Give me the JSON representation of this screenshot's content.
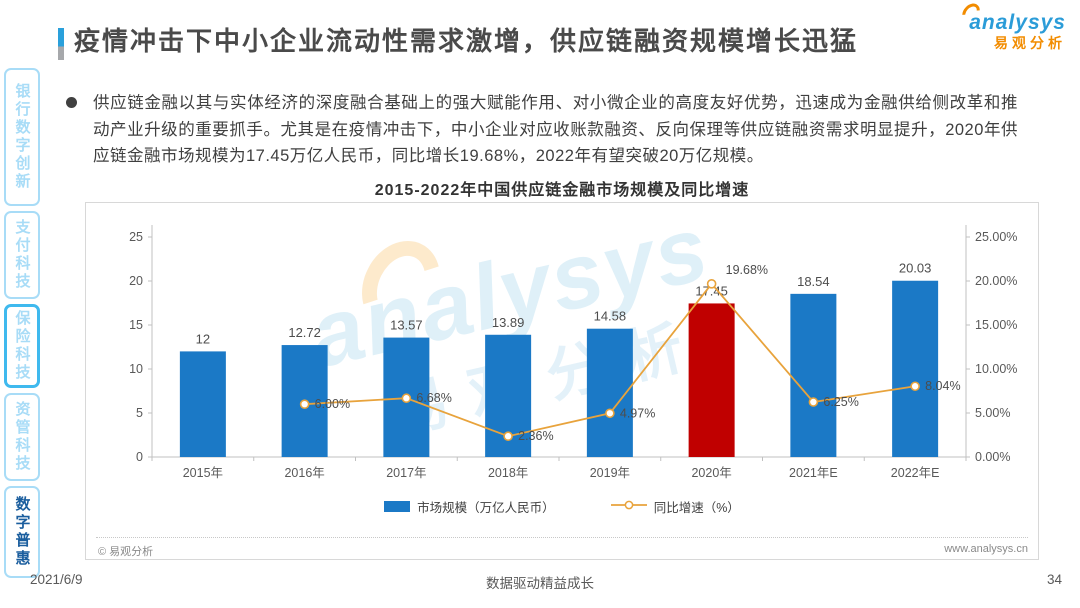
{
  "page": {
    "title": "疫情冲击下中小企业流动性需求激增，供应链融资规模增长迅猛",
    "footer": {
      "date": "2021/6/9",
      "slogan": "数据驱动精益成长",
      "page_number": "34"
    }
  },
  "logo": {
    "brand": "analysys",
    "brand_cn": "易观分析"
  },
  "sidebar": {
    "items": [
      {
        "label": "银行数字创新",
        "highlighted": false,
        "active": false
      },
      {
        "label": "支付科技",
        "highlighted": false,
        "active": false
      },
      {
        "label": "保险科技",
        "highlighted": true,
        "active": false
      },
      {
        "label": "资管科技",
        "highlighted": false,
        "active": false
      },
      {
        "label": "数字普惠",
        "highlighted": false,
        "active": true
      }
    ]
  },
  "body": {
    "bullet_text": "供应链金融以其与实体经济的深度融合基础上的强大赋能作用、对小微企业的高度友好优势，迅速成为金融供给侧改革和推动产业升级的重要抓手。尤其是在疫情冲击下，中小企业对应收账款融资、反向保理等供应链融资需求明显提升，2020年供应链金融市场规模为17.45万亿人民币，同比增长19.68%，2022年有望突破20万亿规模。"
  },
  "chart": {
    "source": "© 易观分析",
    "website": "www.analysys.cn",
    "watermark": {
      "line1": "analysys",
      "line2": "易观分析"
    }
  },
  "chart_data": {
    "type": "bar",
    "combo": "bar+line",
    "title": "2015-2022年中国供应链金融市场规模及同比增速",
    "categories": [
      "2015年",
      "2016年",
      "2017年",
      "2018年",
      "2019年",
      "2020年",
      "2021年E",
      "2022年E"
    ],
    "series": [
      {
        "name": "市场规模（万亿人民币）",
        "type": "bar",
        "values": [
          12,
          12.72,
          13.57,
          13.89,
          14.58,
          17.45,
          18.54,
          20.03
        ],
        "labels": [
          "12",
          "12.72",
          "13.57",
          "13.89",
          "14.58",
          "17.45",
          "18.54",
          "20.03"
        ],
        "color": "#1B79C6",
        "highlight_index": 5,
        "highlight_color": "#C00000"
      },
      {
        "name": "同比增速（%）",
        "type": "line",
        "values": [
          null,
          6.0,
          6.68,
          2.36,
          4.97,
          19.68,
          6.25,
          8.04
        ],
        "labels": [
          "",
          "6.00%",
          "6.68%",
          "2.36%",
          "4.97%",
          "19.68%",
          "6.25%",
          "8.04%"
        ],
        "color": "#E8A33C"
      }
    ],
    "left_axis": {
      "min": 0,
      "max": 25,
      "step": 5,
      "ticks": [
        "0",
        "5",
        "10",
        "15",
        "20",
        "25"
      ]
    },
    "right_axis": {
      "min": 0,
      "max": 25,
      "step": 5,
      "ticks": [
        "0.00%",
        "5.00%",
        "10.00%",
        "15.00%",
        "20.00%",
        "25.00%"
      ]
    },
    "legend": [
      {
        "label": "市场规模（万亿人民币）",
        "swatch": "bar",
        "color": "#1B79C6"
      },
      {
        "label": "同比增速（%）",
        "swatch": "line",
        "color": "#E8A33C"
      }
    ],
    "grid": false,
    "legend_position": "bottom"
  }
}
